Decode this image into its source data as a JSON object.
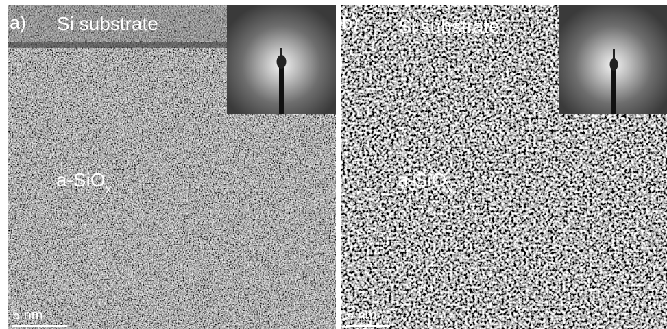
{
  "panels": [
    {
      "label": "a)",
      "substrate": "Si substrate",
      "material": "a-SiO",
      "material_subscript": "x",
      "scale_bar": "5 nm"
    },
    {
      "label": "b)",
      "substrate": "Si substrate",
      "material": "a-SiO",
      "material_subscript": "x",
      "scale_bar": "5 nm"
    }
  ]
}
